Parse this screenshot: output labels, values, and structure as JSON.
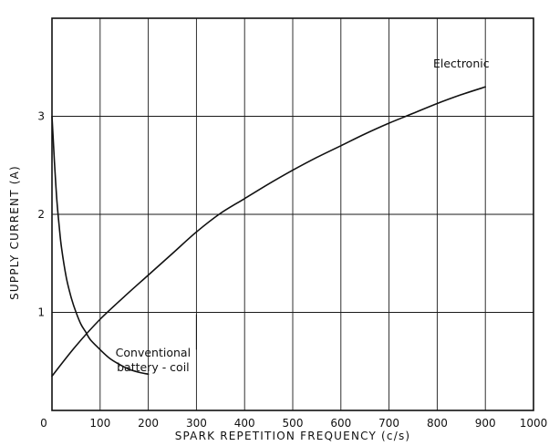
{
  "chart_data": {
    "type": "line",
    "xlabel": "SPARK REPETITION FREQUENCY (c/s)",
    "ylabel": "SUPPLY CURRENT (A)",
    "xlim": [
      0,
      1000
    ],
    "ylim": [
      0,
      4
    ],
    "x_ticks": [
      "0",
      "100",
      "200",
      "300",
      "400",
      "500",
      "600",
      "700",
      "800",
      "900",
      "1000"
    ],
    "y_ticks": [
      "1",
      "2",
      "3"
    ],
    "grid": true,
    "series": [
      {
        "name": "Electronic",
        "x": [
          0,
          50,
          100,
          150,
          200,
          250,
          300,
          350,
          400,
          450,
          500,
          550,
          600,
          650,
          700,
          750,
          800,
          850,
          900
        ],
        "y": [
          0.35,
          0.66,
          0.93,
          1.16,
          1.38,
          1.6,
          1.82,
          2.01,
          2.16,
          2.31,
          2.45,
          2.58,
          2.7,
          2.82,
          2.93,
          3.03,
          3.13,
          3.22,
          3.3
        ]
      },
      {
        "name": "Conventional battery - coil",
        "x": [
          0,
          5,
          10,
          15,
          20,
          30,
          40,
          50,
          60,
          70,
          80,
          100,
          120,
          140,
          160,
          180,
          200
        ],
        "y": [
          3.0,
          2.55,
          2.15,
          1.88,
          1.65,
          1.35,
          1.15,
          1.0,
          0.88,
          0.8,
          0.72,
          0.62,
          0.53,
          0.47,
          0.42,
          0.39,
          0.37
        ]
      }
    ],
    "annotations": {
      "electronic": "Electronic",
      "conventional_line1": "Conventional",
      "conventional_line2": "battery - coil"
    }
  }
}
